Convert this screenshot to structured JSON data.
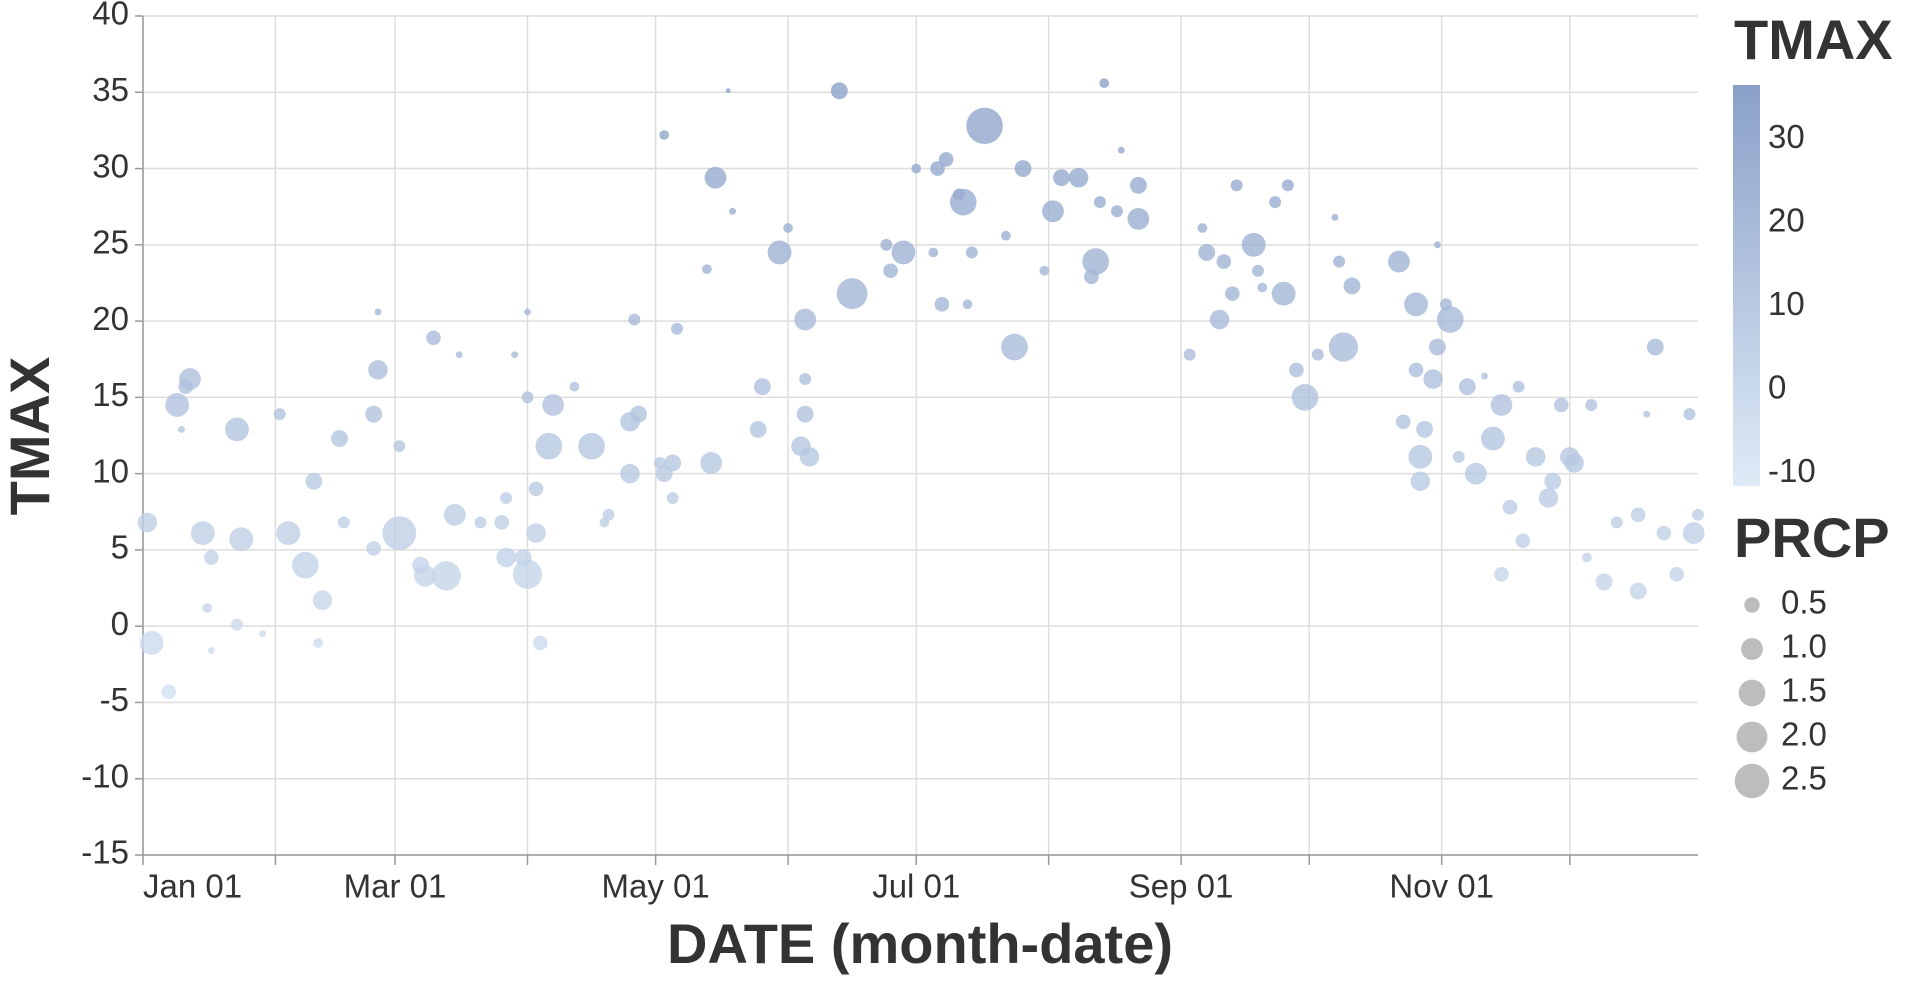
{
  "chart_data": {
    "type": "scatter",
    "x_label": "DATE (month-date)",
    "y_label": "TMAX",
    "color_legend_title": "TMAX",
    "size_legend_title": "PRCP",
    "xlim": [
      "Jan 01",
      "Dec 31"
    ],
    "xticks": [
      "Jan 01",
      {
        "value": "Feb 01",
        "label": null
      },
      "Mar 01",
      {
        "value": "Apr 01",
        "label": null
      },
      "May 01",
      {
        "value": "Jun 01",
        "label": null
      },
      "Jul 01",
      {
        "value": "Aug 01",
        "label": null
      },
      "Sep 01",
      {
        "value": "Oct 01",
        "label": null
      },
      "Nov 01",
      {
        "value": "Dec 01",
        "label": null
      }
    ],
    "ylim": [
      -15,
      40
    ],
    "yticks": [
      -15,
      -10,
      -5,
      0,
      5,
      10,
      15,
      20,
      25,
      30,
      35,
      40
    ],
    "grid": true,
    "color_lim": [
      -11.5,
      36.5
    ],
    "color_range": [
      "#deebf7",
      "#8aa0c8"
    ],
    "color_ticks": [
      30,
      20,
      10,
      0,
      -10
    ],
    "size_ticks": [
      0.5,
      {
        "value": 1,
        "label": "1.0"
      },
      1.5,
      {
        "value": 2,
        "label": "2.0"
      },
      2.5
    ],
    "size_legend_color": "#bdbdbd",
    "x": [
      "Jan 02",
      "Jan 03",
      "Jan 07",
      "Jan 09",
      "Jan 12",
      "Jan 11",
      "Jan 10",
      "Jan 15",
      "Jan 17",
      "Jan 16",
      "Jan 23",
      "Jan 24",
      "Jan 23",
      "Jan 17",
      "Jan 29",
      "Feb 02",
      "Feb 04",
      "Feb 08",
      "Feb 10",
      "Feb 12",
      "Feb 16",
      "Feb 11",
      "Feb 17",
      "Feb 24",
      "Feb 25",
      "Feb 25",
      "Feb 24",
      "Mar 02",
      "Mar 02",
      "Mar 07",
      "Mar 08",
      "Mar 10",
      "Mar 13",
      "Mar 15",
      "Mar 16",
      "Mar 21",
      "Mar 26",
      "Mar 27",
      "Mar 27",
      "Apr 01",
      "Mar 31",
      "Apr 03",
      "Apr 03",
      "Apr 01",
      "Apr 07",
      "Apr 06",
      "Apr 04",
      "Mar 29",
      "Apr 01",
      "Apr 12",
      "Apr 16",
      "Apr 20",
      "Apr 19",
      "Apr 25",
      "Apr 25",
      "Apr 27",
      "Apr 26",
      "May 03",
      "May 05",
      "May 02",
      "May 03",
      "May 06",
      "May 05",
      "May 15",
      "May 14",
      "May 18",
      "May 19",
      "May 13",
      "May 25",
      "May 26",
      "May 30",
      "Jun 01",
      "Jun 05",
      "Jun 05",
      "Jun 04",
      "Jun 06",
      "Jun 05",
      "Jun 16",
      "Jun 13",
      "Jun 28",
      "Jun 25",
      "Jun 24",
      "Jul 01",
      "Jul 06",
      "Jul 08",
      "Jul 12",
      "Jul 11",
      "Jul 17",
      "Jul 14",
      "Jul 07",
      "Jul 13",
      "Jul 05",
      "Jul 24",
      "Jul 26",
      "Jul 22",
      "Aug 02",
      "Aug 04",
      "Aug 08",
      "Aug 12",
      "Aug 11",
      "Aug 13",
      "Aug 17",
      "Aug 22",
      "Aug 22",
      "Aug 14",
      "Jul 31",
      "Aug 18",
      "Sep 03",
      "Sep 07",
      "Sep 10",
      "Sep 11",
      "Sep 13",
      "Sep 14",
      "Sep 18",
      "Sep 19",
      "Sep 23",
      "Sep 26",
      "Sep 25",
      "Sep 20",
      "Sep 06",
      "Sep 30",
      "Sep 28",
      "Oct 03",
      "Oct 09",
      "Oct 08",
      "Oct 11",
      "Oct 07",
      "Oct 22",
      "Oct 26",
      "Oct 30",
      "Oct 31",
      "Nov 03",
      "Nov 02",
      "Oct 27",
      "Oct 27",
      "Oct 28",
      "Oct 23",
      "Oct 26",
      "Nov 07",
      "Nov 09",
      "Nov 13",
      "Nov 15",
      "Nov 19",
      "Nov 17",
      "Nov 20",
      "Nov 15",
      "Nov 23",
      "Nov 27",
      "Nov 26",
      "Dec 01",
      "Dec 02",
      "Nov 29",
      "Dec 06",
      "Dec 05",
      "Dec 09",
      "Dec 12",
      "Dec 17",
      "Dec 17",
      "Dec 21",
      "Dec 23",
      "Dec 26",
      "Dec 30",
      "Dec 29",
      "Dec 31",
      "Dec 19",
      "Oct 31",
      "Nov 05",
      "Nov 11"
    ],
    "values": [
      6.8,
      -1.1,
      -4.3,
      14.5,
      16.2,
      15.7,
      12.9,
      6.1,
      4.5,
      1.2,
      12.9,
      5.7,
      0.1,
      -1.6,
      -0.5,
      13.9,
      6.1,
      4.0,
      9.5,
      1.7,
      12.3,
      -1.1,
      6.8,
      13.9,
      16.8,
      20.6,
      5.1,
      6.1,
      11.8,
      4.0,
      3.3,
      18.9,
      3.3,
      7.3,
      17.8,
      6.8,
      6.8,
      4.5,
      8.4,
      3.4,
      4.5,
      9.0,
      6.1,
      15.0,
      14.5,
      11.8,
      -1.1,
      17.8,
      20.6,
      15.7,
      11.8,
      7.3,
      6.8,
      10.0,
      13.4,
      13.9,
      20.1,
      10.0,
      10.7,
      10.7,
      32.2,
      19.5,
      8.4,
      29.4,
      10.7,
      35.1,
      27.2,
      23.4,
      12.9,
      15.7,
      24.5,
      26.1,
      20.1,
      13.9,
      11.8,
      11.1,
      16.2,
      21.8,
      35.1,
      24.5,
      23.3,
      25.0,
      30.0,
      30.0,
      30.6,
      27.8,
      28.3,
      32.8,
      24.5,
      21.1,
      21.1,
      24.5,
      18.3,
      30.0,
      25.6,
      27.2,
      29.4,
      29.4,
      23.9,
      22.9,
      27.8,
      27.2,
      26.7,
      28.9,
      35.6,
      23.3,
      31.2,
      17.8,
      24.5,
      20.1,
      23.9,
      21.8,
      28.9,
      25.0,
      23.3,
      27.8,
      28.9,
      21.8,
      22.2,
      26.1,
      15.0,
      16.8,
      17.8,
      18.3,
      23.9,
      22.3,
      26.8,
      23.9,
      21.1,
      16.2,
      18.3,
      20.1,
      21.1,
      11.1,
      9.5,
      12.9,
      13.4,
      16.8,
      15.7,
      10.0,
      12.3,
      14.5,
      15.7,
      7.8,
      5.6,
      3.4,
      11.1,
      9.5,
      8.4,
      11.1,
      10.7,
      14.5,
      14.5,
      4.5,
      2.9,
      6.8,
      7.3,
      2.3,
      18.3,
      6.1,
      3.4,
      6.1,
      13.9,
      7.3,
      13.9,
      25.0,
      11.1,
      16.4
    ],
    "sizes": [
      0.8,
      1.2,
      0.45,
      1.2,
      1.0,
      0.45,
      0.1,
      1.2,
      0.45,
      0.2,
      1.2,
      1.2,
      0.3,
      0.1,
      0.1,
      0.3,
      1.2,
      1.5,
      0.6,
      0.8,
      0.6,
      0.2,
      0.3,
      0.6,
      0.8,
      0.1,
      0.45,
      2.4,
      0.3,
      0.6,
      1.0,
      0.45,
      1.8,
      1.0,
      0.1,
      0.3,
      0.45,
      0.8,
      0.3,
      1.8,
      0.6,
      0.45,
      0.8,
      0.3,
      1.0,
      1.5,
      0.45,
      0.1,
      0.1,
      0.2,
      1.5,
      0.3,
      0.2,
      0.8,
      0.8,
      0.6,
      0.3,
      0.6,
      0.6,
      0.3,
      0.2,
      0.3,
      0.3,
      1.0,
      1.0,
      0.05,
      0.1,
      0.2,
      0.6,
      0.6,
      1.2,
      0.2,
      1.0,
      0.6,
      0.8,
      0.8,
      0.3,
      2.0,
      0.6,
      1.2,
      0.45,
      0.3,
      0.2,
      0.45,
      0.45,
      1.5,
      0.3,
      2.8,
      0.3,
      0.45,
      0.2,
      0.2,
      1.5,
      0.6,
      0.2,
      1.0,
      0.6,
      0.8,
      1.5,
      0.45,
      0.3,
      0.3,
      1.0,
      0.6,
      0.2,
      0.2,
      0.1,
      0.3,
      0.6,
      0.8,
      0.45,
      0.45,
      0.3,
      1.2,
      0.3,
      0.3,
      0.3,
      1.2,
      0.2,
      0.2,
      1.5,
      0.45,
      0.3,
      1.8,
      0.3,
      0.6,
      0.1,
      1.0,
      1.2,
      0.8,
      0.6,
      1.5,
      0.3,
      1.2,
      0.8,
      0.6,
      0.45,
      0.45,
      0.6,
      1.0,
      1.2,
      1.0,
      0.3,
      0.45,
      0.45,
      0.45,
      0.8,
      0.6,
      0.8,
      0.8,
      0.8,
      0.45,
      0.3,
      0.2,
      0.6,
      0.3,
      0.45,
      0.6,
      0.6,
      0.45,
      0.45,
      1.0,
      0.3,
      0.3,
      0.1,
      0.1,
      0.3,
      0.1
    ]
  }
}
